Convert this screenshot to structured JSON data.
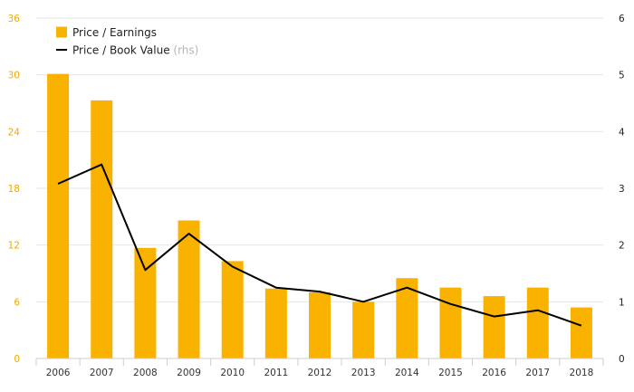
{
  "chart_data": {
    "type": "bar",
    "categories": [
      "2006",
      "2007",
      "2008",
      "2009",
      "2010",
      "2011",
      "2012",
      "2013",
      "2014",
      "2015",
      "2016",
      "2017",
      "2018"
    ],
    "series": [
      {
        "name": "Price / Earnings",
        "type": "bar",
        "axis": "left",
        "color": "#f9b200",
        "values": [
          30.1,
          27.3,
          11.7,
          14.6,
          10.3,
          7.4,
          7.0,
          6.0,
          8.5,
          7.5,
          6.6,
          7.5,
          5.4
        ]
      },
      {
        "name": "Price / Book Value",
        "name_suffix": "(rhs)",
        "type": "line",
        "axis": "right",
        "color": "#000000",
        "values": [
          3.08,
          3.42,
          1.56,
          2.2,
          1.62,
          1.25,
          1.18,
          1.0,
          1.25,
          0.96,
          0.74,
          0.85,
          0.58
        ]
      }
    ],
    "ylim_left": [
      0,
      36
    ],
    "yticks_left": [
      "0",
      "6",
      "12",
      "18",
      "24",
      "30",
      "36"
    ],
    "ylim_right": [
      0,
      6
    ],
    "yticks_right": [
      "0",
      "1",
      "2",
      "3",
      "4",
      "5",
      "6"
    ],
    "grid": "horizontal",
    "legend": "top-left"
  }
}
